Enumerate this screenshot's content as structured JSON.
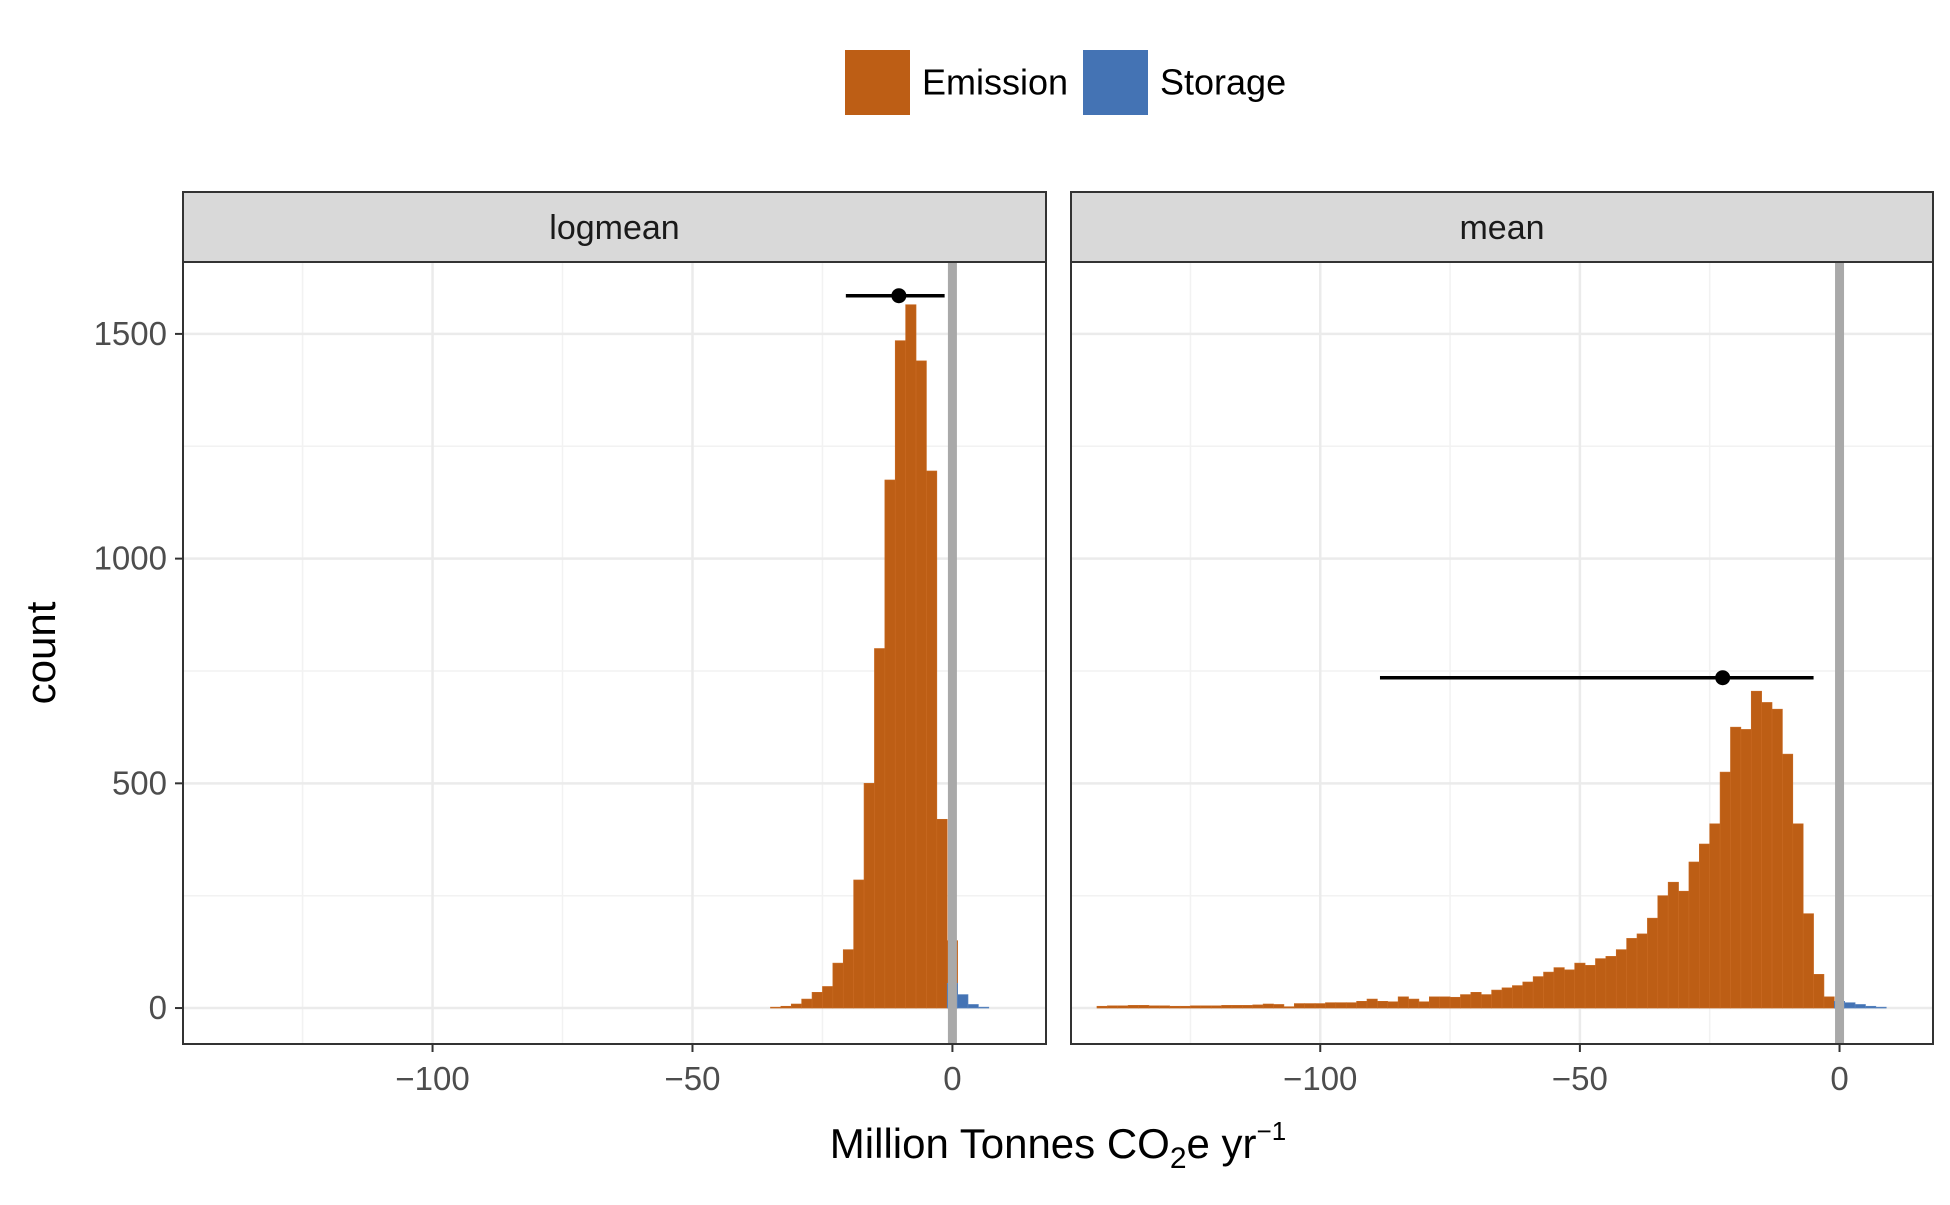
{
  "chart_data": {
    "type": "bar",
    "subtype": "faceted-histogram",
    "legend": {
      "placement": "top",
      "entries": [
        {
          "label": "Emission",
          "color": "#BD5E15"
        },
        {
          "label": "Storage",
          "color": "#4473B4"
        }
      ]
    },
    "xlabel": {
      "prefix": "Million Tonnes CO",
      "sub": "2",
      "mid": "e yr",
      "sup": "−1"
    },
    "ylabel": "count",
    "xlim": [
      -148,
      18
    ],
    "ylim": [
      -80,
      1660
    ],
    "x_ticks": [
      {
        "v": -100,
        "label": "−100"
      },
      {
        "v": -50,
        "label": "−50"
      },
      {
        "v": 0,
        "label": "0"
      }
    ],
    "y_ticks": [
      {
        "v": 0,
        "label": "0"
      },
      {
        "v": 500,
        "label": "500"
      },
      {
        "v": 1000,
        "label": "1000"
      },
      {
        "v": 1500,
        "label": "1500"
      }
    ],
    "grid": true,
    "reference_line_x": 0,
    "bin_width": 2,
    "panels": [
      {
        "strip_label": "logmean",
        "summary": {
          "point": -10.3,
          "low": -20.5,
          "high": -1.5,
          "y": 1585
        },
        "emission_bins": {
          "x": [
            -34,
            -32,
            -30,
            -28,
            -26,
            -24,
            -22,
            -20,
            -18,
            -16,
            -14,
            -12,
            -10,
            -8,
            -6,
            -4,
            -2,
            0
          ],
          "counts": [
            2,
            4,
            9,
            20,
            35,
            48,
            100,
            130,
            285,
            500,
            800,
            1175,
            1485,
            1565,
            1440,
            1195,
            420,
            150
          ]
        },
        "storage_bins": {
          "x": [
            0,
            2,
            4,
            6
          ],
          "counts": [
            55,
            30,
            8,
            2
          ]
        }
      },
      {
        "strip_label": "mean",
        "summary": {
          "point": -22.5,
          "low": -88.5,
          "high": -5,
          "y": 735
        },
        "emission_bins": {
          "x": [
            -142,
            -140,
            -138,
            -136,
            -134,
            -132,
            -130,
            -128,
            -126,
            -124,
            -122,
            -120,
            -118,
            -116,
            -114,
            -112,
            -110,
            -108,
            -106,
            -104,
            -102,
            -100,
            -98,
            -96,
            -94,
            -92,
            -90,
            -88,
            -86,
            -84,
            -82,
            -80,
            -78,
            -76,
            -74,
            -72,
            -70,
            -68,
            -66,
            -64,
            -62,
            -60,
            -58,
            -56,
            -54,
            -52,
            -50,
            -48,
            -46,
            -44,
            -42,
            -40,
            -38,
            -36,
            -34,
            -32,
            -30,
            -28,
            -26,
            -24,
            -22,
            -20,
            -18,
            -16,
            -14,
            -12,
            -10,
            -8,
            -6,
            -4,
            -2,
            0
          ],
          "counts": [
            4,
            5,
            5,
            6,
            6,
            5,
            5,
            4,
            4,
            5,
            5,
            5,
            6,
            6,
            6,
            7,
            9,
            8,
            3,
            10,
            10,
            10,
            12,
            12,
            12,
            15,
            20,
            15,
            14,
            25,
            20,
            14,
            25,
            25,
            24,
            30,
            35,
            30,
            40,
            45,
            50,
            58,
            70,
            80,
            90,
            85,
            100,
            95,
            110,
            115,
            130,
            155,
            165,
            200,
            250,
            280,
            260,
            325,
            365,
            410,
            525,
            625,
            620,
            705,
            680,
            665,
            565,
            410,
            210,
            75,
            25,
            8
          ]
        },
        "storage_bins": {
          "x": [
            0,
            2,
            4,
            6,
            8
          ],
          "counts": [
            15,
            12,
            8,
            4,
            2
          ]
        }
      }
    ]
  }
}
